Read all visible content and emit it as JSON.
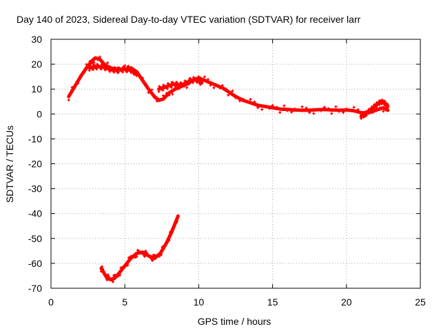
{
  "chart_data": {
    "type": "line",
    "title": "Day 140 of 2023, Sidereal Day-to-day VTEC variation (SDTVAR) for receiver larr",
    "xlabel": "GPS time / hours",
    "ylabel": "SDTVAR / TECUs",
    "xlim": [
      0,
      25
    ],
    "ylim": [
      -70,
      30
    ],
    "xticks": [
      0,
      5,
      10,
      15,
      20,
      25
    ],
    "yticks": [
      -70,
      -60,
      -50,
      -40,
      -30,
      -20,
      -10,
      0,
      10,
      20,
      30
    ],
    "grid": true,
    "color": "#ff0000",
    "series": [
      {
        "name": "SDTVAR upper branch",
        "band": 1.4,
        "x": [
          1.2,
          1.6,
          2.0,
          2.4,
          2.8,
          3.0,
          3.3,
          3.6,
          4.0,
          4.5,
          5.0,
          5.4,
          5.8,
          6.2,
          6.6,
          7.0,
          7.3,
          7.6,
          8.0,
          8.4,
          8.8,
          9.2,
          9.6,
          10.0,
          10.4,
          10.8,
          11.2,
          11.6,
          12.0,
          12.5,
          13.0,
          13.5,
          14.0,
          14.5,
          15.0,
          15.5,
          16.0,
          16.5,
          17.0,
          17.5,
          18.0,
          18.5,
          19.0,
          19.5,
          20.0,
          20.5,
          21.0,
          21.5,
          22.0,
          22.5,
          22.8
        ],
        "y": [
          7,
          11,
          15,
          18.5,
          21.5,
          22.5,
          22,
          20,
          18.5,
          18,
          18,
          18.5,
          17,
          13.5,
          10,
          7,
          5.5,
          6,
          8.5,
          10,
          11,
          12,
          13.5,
          14.5,
          13.5,
          12.5,
          11.5,
          10.5,
          9,
          7,
          5.5,
          4.5,
          3.5,
          3,
          2.5,
          2,
          1.8,
          1.6,
          1.5,
          1.5,
          1.7,
          1.8,
          1.6,
          1.5,
          1.6,
          1.3,
          0.5,
          0.5,
          1.5,
          2.5,
          1.5
        ]
      },
      {
        "name": "SDTVAR secondary branch",
        "band": 1.0,
        "x": [
          2.6,
          3.0,
          3.5,
          4.0,
          4.5,
          5.0,
          5.5,
          5.8
        ],
        "y": [
          18.5,
          19,
          19,
          18,
          17.5,
          18,
          17.5,
          16
        ],
        "trace_x": [
          7.3,
          7.8,
          8.3,
          8.8,
          9.3,
          9.8,
          10.2
        ],
        "trace_y": [
          10,
          11,
          12,
          11.5,
          13,
          14,
          12.5
        ]
      },
      {
        "name": "SDTVAR lower branch",
        "band": 1.2,
        "x": [
          3.4,
          3.7,
          4.0,
          4.3,
          4.6,
          5.0,
          5.4,
          5.8,
          6.2,
          6.6,
          7.0,
          7.4,
          7.8,
          8.2,
          8.6
        ],
        "y": [
          -62,
          -65,
          -66.5,
          -66,
          -64,
          -61,
          -58,
          -56,
          -55.5,
          -57,
          -58,
          -56,
          -52,
          -47,
          -41
        ]
      },
      {
        "name": "SDTVAR noisy tail",
        "band": 0.8,
        "x": [
          21.0,
          21.3,
          21.6,
          21.9,
          22.2,
          22.5,
          22.8
        ],
        "y": [
          -1,
          0,
          1.5,
          3,
          4.5,
          5,
          3
        ]
      }
    ]
  }
}
